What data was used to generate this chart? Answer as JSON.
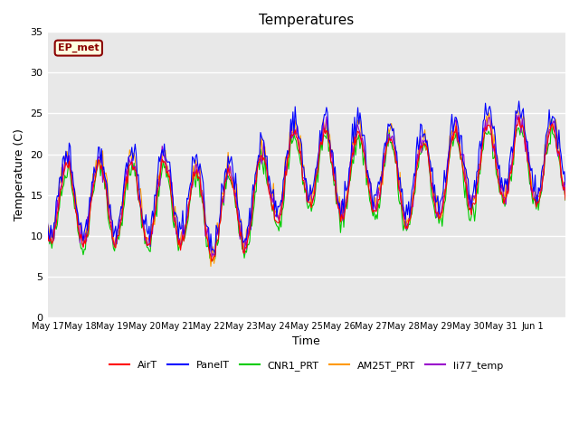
{
  "title": "Temperatures",
  "xlabel": "Time",
  "ylabel": "Temperature (C)",
  "ylim": [
    0,
    35
  ],
  "yticks": [
    0,
    5,
    10,
    15,
    20,
    25,
    30,
    35
  ],
  "annotation_text": "EP_met",
  "annotation_color": "#8B0000",
  "annotation_bg": "#FFFFE0",
  "series_colors": {
    "AirT": "#FF0000",
    "PanelT": "#0000FF",
    "CNR1_PRT": "#00CC00",
    "AM25T_PRT": "#FF9900",
    "li77_temp": "#9900CC"
  },
  "series_order": [
    "AirT",
    "PanelT",
    "CNR1_PRT",
    "AM25T_PRT",
    "li77_temp"
  ],
  "background_color": "#E8E8E8",
  "grid_color": "#FFFFFF",
  "tick_labels": [
    "May 17",
    "May 18",
    "May 19",
    "May 20",
    "May 21",
    "May 22",
    "May 23",
    "May 24",
    "May 25",
    "May 26",
    "May 27",
    "May 28",
    "May 29",
    "May 30",
    "May 31",
    "Jun 1"
  ],
  "n_points": 480
}
